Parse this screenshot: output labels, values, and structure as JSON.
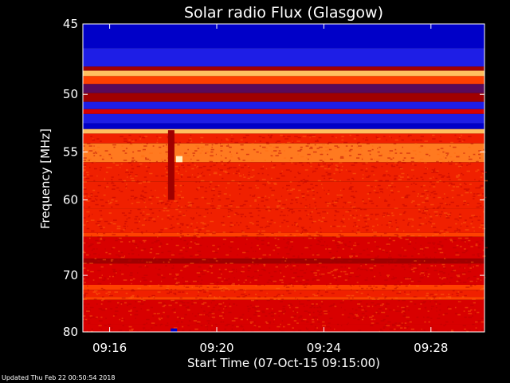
{
  "chart_data": {
    "type": "heatmap",
    "title": "Solar radio Flux (Glasgow)",
    "ylabel": "Frequency [MHz]",
    "xlabel": "Start Time (07-Oct-15 09:15:00)",
    "x_ticks": [
      "09:16",
      "09:20",
      "09:24",
      "09:28"
    ],
    "x_tick_minutes": [
      1,
      5,
      9,
      13
    ],
    "x_range_minutes": [
      0,
      15
    ],
    "y_ticks": [
      45,
      50,
      55,
      60,
      70,
      80
    ],
    "y_range_mhz": [
      45,
      80
    ],
    "y_scale": "reciprocal",
    "colormap": [
      "#0000c8",
      "#1e1ee6",
      "#5a0a5a",
      "#a00000",
      "#d80000",
      "#f02000",
      "#ff4000",
      "#ff7a20",
      "#ffc060",
      "#fff0c0"
    ],
    "bands": [
      {
        "from_mhz": 45.0,
        "to_mhz": 46.6,
        "level": 0.05
      },
      {
        "from_mhz": 46.6,
        "to_mhz": 47.9,
        "level": 0.08
      },
      {
        "from_mhz": 47.9,
        "to_mhz": 48.2,
        "level": 0.3
      },
      {
        "from_mhz": 48.2,
        "to_mhz": 48.6,
        "level": 0.9
      },
      {
        "from_mhz": 48.6,
        "to_mhz": 49.2,
        "level": 0.7
      },
      {
        "from_mhz": 49.2,
        "to_mhz": 49.9,
        "level": 0.25
      },
      {
        "from_mhz": 49.9,
        "to_mhz": 50.6,
        "level": 0.35
      },
      {
        "from_mhz": 50.6,
        "to_mhz": 51.2,
        "level": 0.15
      },
      {
        "from_mhz": 51.2,
        "to_mhz": 51.6,
        "level": 0.45
      },
      {
        "from_mhz": 51.6,
        "to_mhz": 52.4,
        "level": 0.1
      },
      {
        "from_mhz": 52.4,
        "to_mhz": 52.9,
        "level": 0.05
      },
      {
        "from_mhz": 52.9,
        "to_mhz": 53.3,
        "level": 0.85
      },
      {
        "from_mhz": 53.3,
        "to_mhz": 54.2,
        "level": 0.6
      },
      {
        "from_mhz": 54.2,
        "to_mhz": 56.0,
        "level": 0.75
      },
      {
        "from_mhz": 56.0,
        "to_mhz": 58.0,
        "level": 0.6
      },
      {
        "from_mhz": 58.0,
        "to_mhz": 61.0,
        "level": 0.52
      },
      {
        "from_mhz": 61.0,
        "to_mhz": 64.0,
        "level": 0.5
      },
      {
        "from_mhz": 64.0,
        "to_mhz": 64.5,
        "level": 0.62
      },
      {
        "from_mhz": 64.5,
        "to_mhz": 67.5,
        "level": 0.48
      },
      {
        "from_mhz": 67.5,
        "to_mhz": 68.2,
        "level": 0.38
      },
      {
        "from_mhz": 68.2,
        "to_mhz": 71.5,
        "level": 0.47
      },
      {
        "from_mhz": 71.5,
        "to_mhz": 72.3,
        "level": 0.72
      },
      {
        "from_mhz": 72.3,
        "to_mhz": 73.5,
        "level": 0.5
      },
      {
        "from_mhz": 73.5,
        "to_mhz": 74.0,
        "level": 0.62
      },
      {
        "from_mhz": 74.0,
        "to_mhz": 78.5,
        "level": 0.45
      },
      {
        "from_mhz": 78.5,
        "to_mhz": 80.0,
        "level": 0.4
      }
    ],
    "vertical_features": [
      {
        "minute": 3.3,
        "from_mhz": 53.0,
        "to_mhz": 60.0,
        "level": 0.35
      },
      {
        "minute": 3.6,
        "from_mhz": 55.4,
        "to_mhz": 56.0,
        "level": 0.95
      },
      {
        "minute": 3.4,
        "from_mhz": 79.3,
        "to_mhz": 80.0,
        "level": 0.0
      }
    ],
    "grid": false,
    "legend": "none"
  },
  "footer": {
    "updated": "Updated Thu Feb 22 00:50:54 2018"
  }
}
